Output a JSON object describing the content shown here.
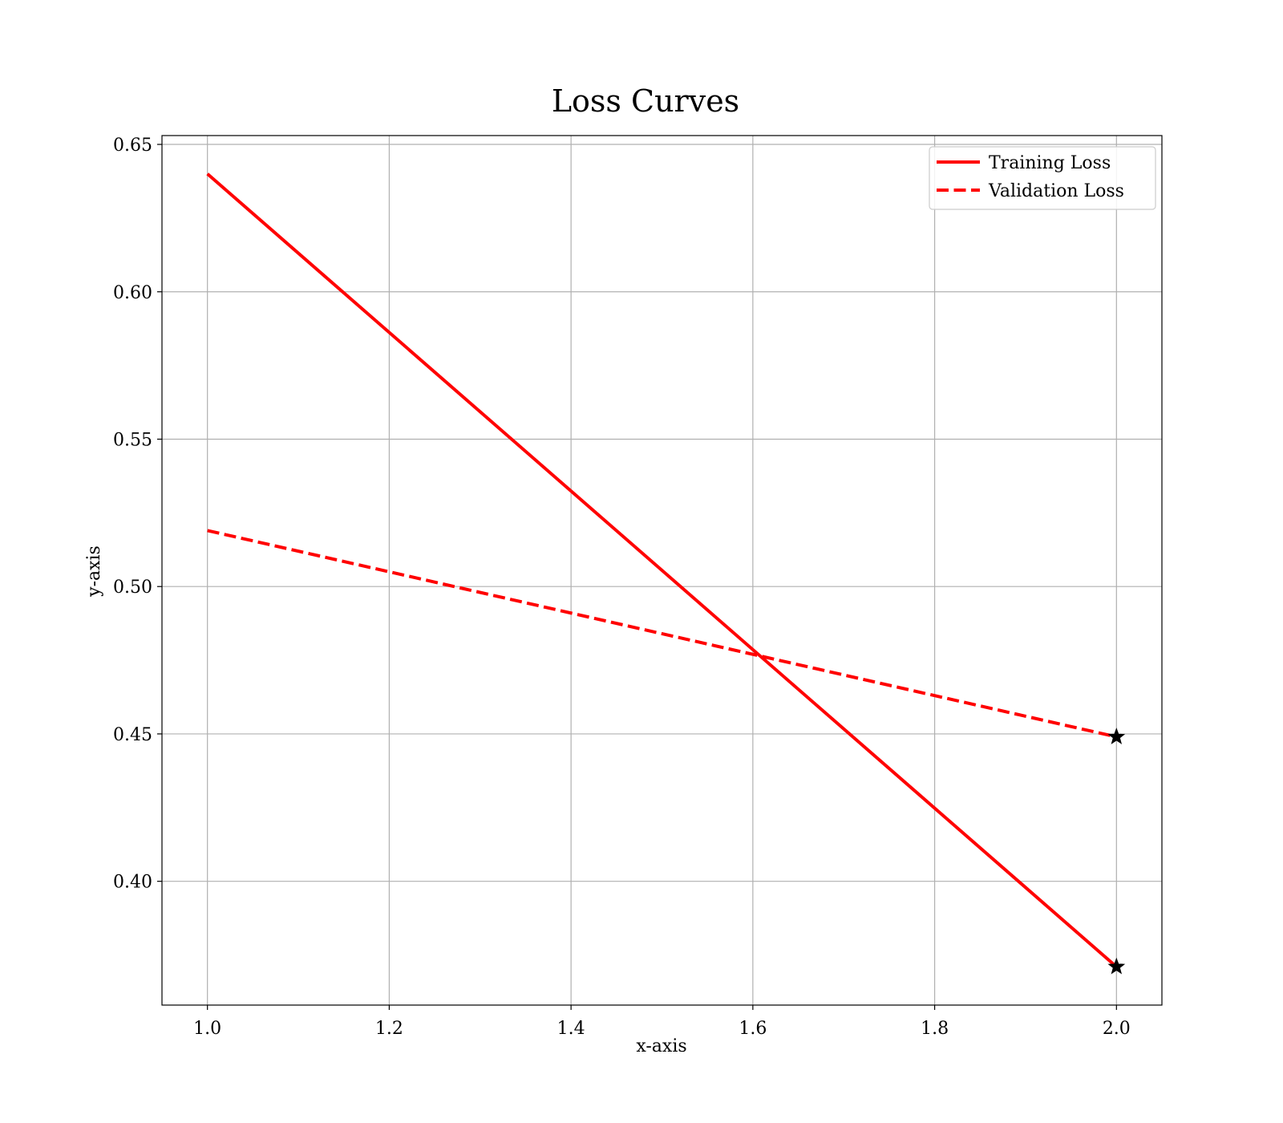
{
  "chart_data": {
    "type": "line",
    "title": "Loss Curves",
    "xlabel": "x-axis",
    "ylabel": "y-axis",
    "xlim": [
      0.95,
      2.05
    ],
    "ylim": [
      0.358,
      0.653
    ],
    "xticks": [
      1.0,
      1.2,
      1.4,
      1.6,
      1.8,
      2.0
    ],
    "xtick_labels": [
      "1.0",
      "1.2",
      "1.4",
      "1.6",
      "1.8",
      "2.0"
    ],
    "yticks": [
      0.4,
      0.45,
      0.5,
      0.55,
      0.6,
      0.65
    ],
    "ytick_labels": [
      "0.40",
      "0.45",
      "0.50",
      "0.55",
      "0.60",
      "0.65"
    ],
    "grid": true,
    "legend_position": "top-right",
    "series": [
      {
        "name": "Training Loss",
        "x": [
          1,
          2
        ],
        "y": [
          0.64,
          0.371
        ],
        "color": "#ff0000",
        "style": "solid",
        "end_marker": "star"
      },
      {
        "name": "Validation Loss",
        "x": [
          1,
          2
        ],
        "y": [
          0.519,
          0.449
        ],
        "color": "#ff0000",
        "style": "dashed",
        "end_marker": "star"
      }
    ]
  }
}
